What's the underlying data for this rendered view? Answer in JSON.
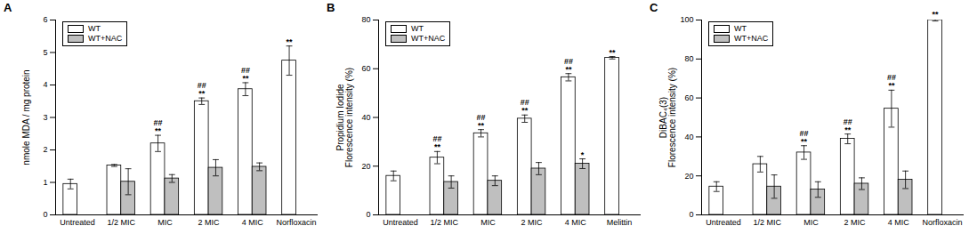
{
  "chart_data": [
    {
      "type": "bar",
      "title": "A",
      "categories": [
        "Untreated",
        "1/2 MIC",
        "MIC",
        "2 MIC",
        "4 MIC",
        "Norfloxacin"
      ],
      "y_label": "nmole MDA / mg protein",
      "ylim": [
        0,
        6
      ],
      "yticks": [
        0,
        1,
        2,
        3,
        4,
        5,
        6
      ],
      "legend": "top-left",
      "series": [
        {
          "name": "WT",
          "color": "#ffffff",
          "values": [
            0.95,
            1.52,
            2.2,
            3.5,
            3.87,
            4.75
          ],
          "errors": [
            0.15,
            0.03,
            0.25,
            0.1,
            0.2,
            0.45
          ],
          "annotations": [
            null,
            null,
            "##\n**",
            "##\n**",
            "##\n**",
            "**"
          ]
        },
        {
          "name": "WT+NAC",
          "color": "#bfbfbf",
          "values": [
            null,
            1.02,
            1.12,
            1.45,
            1.48,
            null
          ],
          "errors": [
            null,
            0.4,
            0.12,
            0.25,
            0.12,
            null
          ]
        }
      ]
    },
    {
      "type": "bar",
      "title": "B",
      "categories": [
        "Untreated",
        "1/2 MIC",
        "MIC",
        "2 MIC",
        "4 MIC",
        "Melittin"
      ],
      "y_label": "Propidium Iodide\nFlorescence intensity (%)",
      "ylim": [
        0,
        80
      ],
      "yticks": [
        0,
        20,
        40,
        60,
        80
      ],
      "legend": "top-left",
      "series": [
        {
          "name": "WT",
          "color": "#ffffff",
          "values": [
            16,
            23.5,
            33.5,
            39.5,
            56.5,
            64.5
          ],
          "errors": [
            2,
            2.5,
            1.5,
            1.5,
            1.5,
            0.5
          ],
          "annotations": [
            null,
            "##\n**",
            "##\n**",
            "##\n**",
            "##\n**",
            "**"
          ]
        },
        {
          "name": "WT+NAC",
          "color": "#bfbfbf",
          "values": [
            null,
            13.5,
            14,
            19,
            21,
            null
          ],
          "errors": [
            null,
            2.5,
            2,
            2.5,
            2,
            null
          ],
          "annotations": [
            null,
            null,
            null,
            null,
            "*",
            null
          ]
        }
      ]
    },
    {
      "type": "bar",
      "title": "C",
      "categories": [
        "Untreated",
        "1/2 MIC",
        "MIC",
        "2 MIC",
        "4 MIC",
        "Norfloxacin"
      ],
      "y_label": "DiBAC₄(3)\nFlorescence intensity (%)",
      "ylim": [
        0,
        100
      ],
      "yticks": [
        0,
        20,
        40,
        60,
        80,
        100
      ],
      "legend": "top-left",
      "series": [
        {
          "name": "WT",
          "color": "#ffffff",
          "values": [
            14.5,
            26,
            32,
            39,
            54.5,
            100
          ],
          "errors": [
            2.5,
            4,
            3.5,
            2.5,
            9.5,
            0.5
          ],
          "annotations": [
            null,
            null,
            "##\n**",
            "##\n**",
            "##\n**",
            "**"
          ]
        },
        {
          "name": "WT+NAC",
          "color": "#bfbfbf",
          "values": [
            null,
            14.5,
            13,
            16,
            18,
            null
          ],
          "errors": [
            null,
            6,
            4,
            3,
            4.5,
            null
          ]
        }
      ]
    }
  ]
}
